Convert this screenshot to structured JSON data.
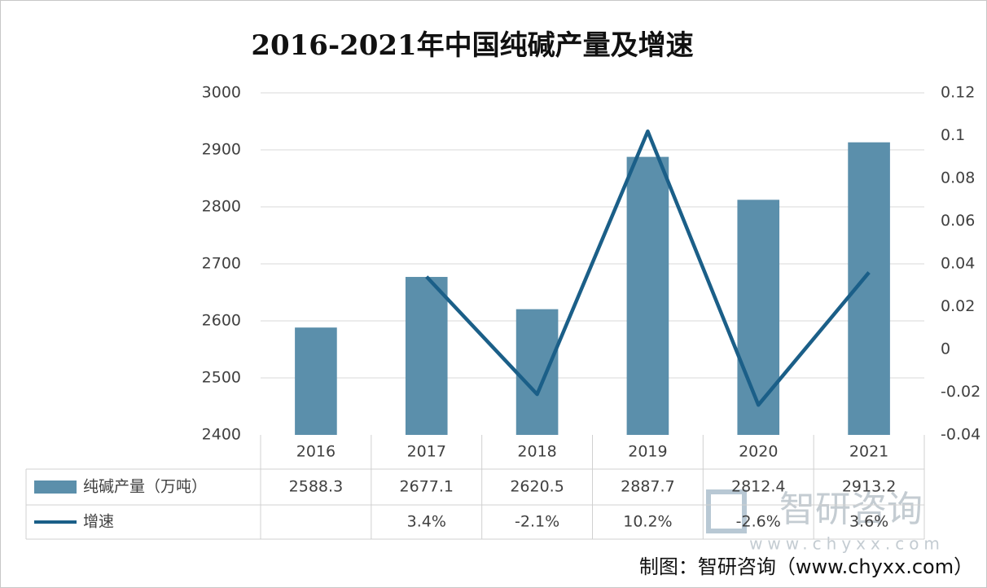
{
  "chart_data": {
    "type": "bar_line_table",
    "title": "2016-2021年中国纯碱产量及增速",
    "categories": [
      "2016",
      "2017",
      "2018",
      "2019",
      "2020",
      "2021"
    ],
    "series": [
      {
        "name": "纯碱产量（万吨）",
        "type": "bar",
        "color": "#5b8fab",
        "values": [
          2588.3,
          2677.1,
          2620.5,
          2887.7,
          2812.4,
          2913.2
        ]
      },
      {
        "name": "增速",
        "type": "line",
        "axis": "y2",
        "color": "#1b5f88",
        "values": [
          null,
          0.034,
          -0.021,
          0.102,
          -0.026,
          0.036
        ],
        "value_labels": [
          null,
          "3.4%",
          "-2.1%",
          "10.2%",
          "-2.6%",
          "3.6%"
        ]
      }
    ],
    "ylim": [
      2400,
      3000
    ],
    "yticks": [
      2400,
      2500,
      2600,
      2700,
      2800,
      2900,
      3000
    ],
    "y2lim": [
      -0.04,
      0.12
    ],
    "y2ticks": [
      -0.04,
      -0.02,
      0,
      0.02,
      0.04,
      0.06,
      0.08,
      0.1,
      0.12
    ],
    "grid": true,
    "source": "制图：智研咨询（www.chyxx.com）",
    "watermark": {
      "text": "智研咨询",
      "url": "www.chyxx.com"
    }
  }
}
